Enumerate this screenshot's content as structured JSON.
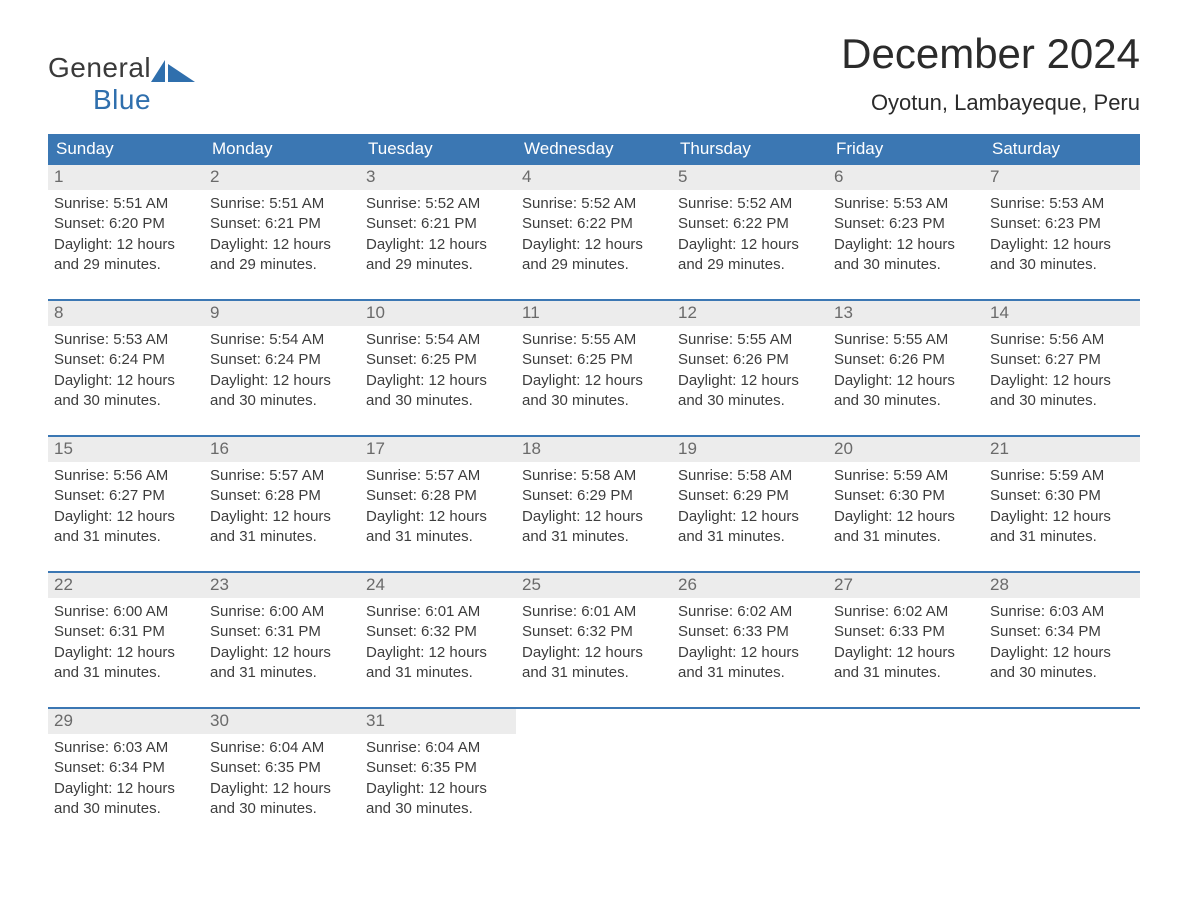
{
  "colors": {
    "header_bg": "#3b77b3",
    "header_text": "#ffffff",
    "daynum_bg": "#ececec",
    "daynum_text": "#6a6a6a",
    "body_text": "#3d3d3d",
    "logo_blue": "#2f6fad",
    "logo_dark": "#3a3a3a",
    "separator": "#3b77b3",
    "page_bg": "#ffffff"
  },
  "typography": {
    "title_fontsize": 42,
    "location_fontsize": 22,
    "weekday_fontsize": 17,
    "daynum_fontsize": 17,
    "body_fontsize": 15,
    "font_family": "Arial"
  },
  "logo": {
    "line1": "General",
    "line2": "Blue"
  },
  "title": "December 2024",
  "location": "Oyotun, Lambayeque, Peru",
  "weekdays": [
    "Sunday",
    "Monday",
    "Tuesday",
    "Wednesday",
    "Thursday",
    "Friday",
    "Saturday"
  ],
  "labels": {
    "sunrise": "Sunrise",
    "sunset": "Sunset",
    "daylight": "Daylight"
  },
  "days": [
    {
      "n": 1,
      "sunrise": "5:51 AM",
      "sunset": "6:20 PM",
      "daylight": "12 hours and 29 minutes."
    },
    {
      "n": 2,
      "sunrise": "5:51 AM",
      "sunset": "6:21 PM",
      "daylight": "12 hours and 29 minutes."
    },
    {
      "n": 3,
      "sunrise": "5:52 AM",
      "sunset": "6:21 PM",
      "daylight": "12 hours and 29 minutes."
    },
    {
      "n": 4,
      "sunrise": "5:52 AM",
      "sunset": "6:22 PM",
      "daylight": "12 hours and 29 minutes."
    },
    {
      "n": 5,
      "sunrise": "5:52 AM",
      "sunset": "6:22 PM",
      "daylight": "12 hours and 29 minutes."
    },
    {
      "n": 6,
      "sunrise": "5:53 AM",
      "sunset": "6:23 PM",
      "daylight": "12 hours and 30 minutes."
    },
    {
      "n": 7,
      "sunrise": "5:53 AM",
      "sunset": "6:23 PM",
      "daylight": "12 hours and 30 minutes."
    },
    {
      "n": 8,
      "sunrise": "5:53 AM",
      "sunset": "6:24 PM",
      "daylight": "12 hours and 30 minutes."
    },
    {
      "n": 9,
      "sunrise": "5:54 AM",
      "sunset": "6:24 PM",
      "daylight": "12 hours and 30 minutes."
    },
    {
      "n": 10,
      "sunrise": "5:54 AM",
      "sunset": "6:25 PM",
      "daylight": "12 hours and 30 minutes."
    },
    {
      "n": 11,
      "sunrise": "5:55 AM",
      "sunset": "6:25 PM",
      "daylight": "12 hours and 30 minutes."
    },
    {
      "n": 12,
      "sunrise": "5:55 AM",
      "sunset": "6:26 PM",
      "daylight": "12 hours and 30 minutes."
    },
    {
      "n": 13,
      "sunrise": "5:55 AM",
      "sunset": "6:26 PM",
      "daylight": "12 hours and 30 minutes."
    },
    {
      "n": 14,
      "sunrise": "5:56 AM",
      "sunset": "6:27 PM",
      "daylight": "12 hours and 30 minutes."
    },
    {
      "n": 15,
      "sunrise": "5:56 AM",
      "sunset": "6:27 PM",
      "daylight": "12 hours and 31 minutes."
    },
    {
      "n": 16,
      "sunrise": "5:57 AM",
      "sunset": "6:28 PM",
      "daylight": "12 hours and 31 minutes."
    },
    {
      "n": 17,
      "sunrise": "5:57 AM",
      "sunset": "6:28 PM",
      "daylight": "12 hours and 31 minutes."
    },
    {
      "n": 18,
      "sunrise": "5:58 AM",
      "sunset": "6:29 PM",
      "daylight": "12 hours and 31 minutes."
    },
    {
      "n": 19,
      "sunrise": "5:58 AM",
      "sunset": "6:29 PM",
      "daylight": "12 hours and 31 minutes."
    },
    {
      "n": 20,
      "sunrise": "5:59 AM",
      "sunset": "6:30 PM",
      "daylight": "12 hours and 31 minutes."
    },
    {
      "n": 21,
      "sunrise": "5:59 AM",
      "sunset": "6:30 PM",
      "daylight": "12 hours and 31 minutes."
    },
    {
      "n": 22,
      "sunrise": "6:00 AM",
      "sunset": "6:31 PM",
      "daylight": "12 hours and 31 minutes."
    },
    {
      "n": 23,
      "sunrise": "6:00 AM",
      "sunset": "6:31 PM",
      "daylight": "12 hours and 31 minutes."
    },
    {
      "n": 24,
      "sunrise": "6:01 AM",
      "sunset": "6:32 PM",
      "daylight": "12 hours and 31 minutes."
    },
    {
      "n": 25,
      "sunrise": "6:01 AM",
      "sunset": "6:32 PM",
      "daylight": "12 hours and 31 minutes."
    },
    {
      "n": 26,
      "sunrise": "6:02 AM",
      "sunset": "6:33 PM",
      "daylight": "12 hours and 31 minutes."
    },
    {
      "n": 27,
      "sunrise": "6:02 AM",
      "sunset": "6:33 PM",
      "daylight": "12 hours and 31 minutes."
    },
    {
      "n": 28,
      "sunrise": "6:03 AM",
      "sunset": "6:34 PM",
      "daylight": "12 hours and 30 minutes."
    },
    {
      "n": 29,
      "sunrise": "6:03 AM",
      "sunset": "6:34 PM",
      "daylight": "12 hours and 30 minutes."
    },
    {
      "n": 30,
      "sunrise": "6:04 AM",
      "sunset": "6:35 PM",
      "daylight": "12 hours and 30 minutes."
    },
    {
      "n": 31,
      "sunrise": "6:04 AM",
      "sunset": "6:35 PM",
      "daylight": "12 hours and 30 minutes."
    }
  ],
  "layout": {
    "start_weekday": 0,
    "days_in_month": 31,
    "columns": 7
  }
}
